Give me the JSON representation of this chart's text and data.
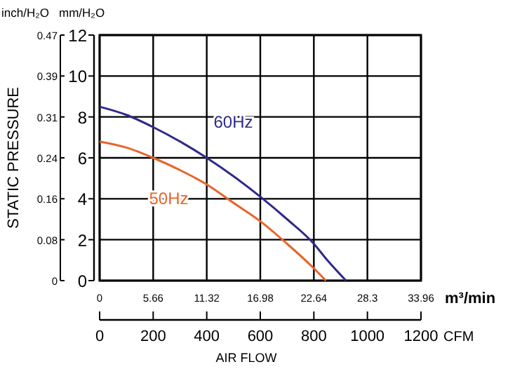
{
  "chart_data": {
    "type": "line",
    "ylabel": "mm/H₂O",
    "xlabel": "AIR FLOW",
    "y2label": "inch/H₂O",
    "x2label": "m³/min",
    "annotations": [
      "STATIC PRESSURE",
      "CFM"
    ],
    "xlim": [
      0,
      1200
    ],
    "xticks": [
      0,
      200,
      400,
      600,
      800,
      1000,
      1200
    ],
    "x2lim": [
      0,
      33.96
    ],
    "x2ticks": [
      0,
      5.66,
      11.32,
      16.98,
      22.64,
      28.3,
      33.96
    ],
    "ylim": [
      0,
      12
    ],
    "yticks": [
      0,
      2,
      4,
      6,
      8,
      10,
      12
    ],
    "y2lim": [
      0,
      0.47
    ],
    "y2ticks": [
      0,
      {
        "value": 0.0783,
        "label": "0.08"
      },
      {
        "value": 0.1567,
        "label": "0.16"
      },
      {
        "value": 0.235,
        "label": "0.24"
      },
      {
        "value": 0.3133,
        "label": "0.31"
      },
      {
        "value": 0.3917,
        "label": "0.39"
      },
      0.47
    ],
    "grid": true,
    "legend": false,
    "marker": "none",
    "line_style": "solid",
    "series": [
      {
        "name": "60Hz",
        "color": "#2e2a8a",
        "x": [
          0,
          100,
          200,
          300,
          400,
          500,
          600,
          700,
          800,
          850,
          920
        ],
        "values": [
          8.5,
          8.1,
          7.5,
          6.8,
          6.0,
          5.1,
          4.1,
          3.0,
          1.8,
          1.0,
          0
        ]
      },
      {
        "name": "50Hz",
        "color": "#e8642a",
        "x": [
          0,
          100,
          200,
          300,
          400,
          500,
          600,
          700,
          800,
          845
        ],
        "values": [
          6.8,
          6.5,
          6.0,
          5.4,
          4.7,
          3.8,
          2.9,
          1.8,
          0.6,
          0
        ]
      }
    ]
  }
}
